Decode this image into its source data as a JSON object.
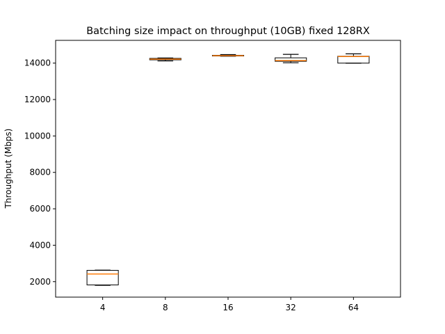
{
  "chart_data": {
    "type": "box",
    "title": "Batching size impact on throughput (10GB) fixed 128RX",
    "xlabel": "",
    "ylabel": "Throughput (Mbps)",
    "categories": [
      "4",
      "8",
      "16",
      "32",
      "64"
    ],
    "ylim": [
      1150,
      15250
    ],
    "yticks": [
      2000,
      4000,
      6000,
      8000,
      10000,
      12000,
      14000
    ],
    "grid": false,
    "colors": {
      "box": "#000000",
      "median": "#ff7f0e"
    },
    "boxes": [
      {
        "category": "4",
        "whisker_low": 1800,
        "q1": 1820,
        "median": 2420,
        "q3": 2620,
        "whisker_high": 2630
      },
      {
        "category": "8",
        "whisker_low": 14120,
        "q1": 14180,
        "median": 14220,
        "q3": 14260,
        "whisker_high": 14280
      },
      {
        "category": "16",
        "whisker_low": 14380,
        "q1": 14390,
        "median": 14410,
        "q3": 14430,
        "whisker_high": 14470
      },
      {
        "category": "32",
        "whisker_low": 14020,
        "q1": 14100,
        "median": 14140,
        "q3": 14290,
        "whisker_high": 14480
      },
      {
        "category": "64",
        "whisker_low": 14000,
        "q1": 14000,
        "median": 14360,
        "q3": 14380,
        "whisker_high": 14510
      }
    ]
  }
}
